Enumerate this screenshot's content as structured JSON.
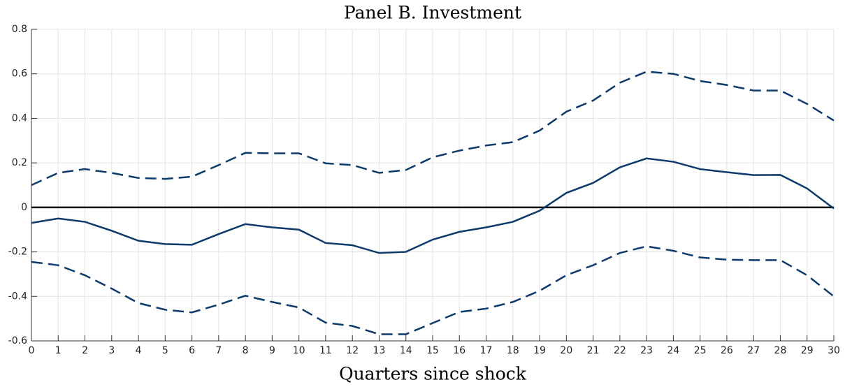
{
  "chart_data": {
    "type": "line",
    "title": "Panel B. Investment",
    "x_label": "Quarters since shock",
    "x": [
      0,
      1,
      2,
      3,
      4,
      5,
      6,
      7,
      8,
      9,
      10,
      11,
      12,
      13,
      14,
      15,
      16,
      17,
      18,
      19,
      20,
      21,
      22,
      23,
      24,
      25,
      26,
      27,
      28,
      29,
      30
    ],
    "series": [
      {
        "color": "#0b3a6b",
        "line_style": "solid",
        "values": [
          -0.07,
          -0.05,
          -0.065,
          -0.105,
          -0.15,
          -0.165,
          -0.168,
          -0.12,
          -0.075,
          -0.09,
          -0.1,
          -0.16,
          -0.17,
          -0.205,
          -0.2,
          -0.145,
          -0.11,
          -0.09,
          -0.065,
          -0.015,
          0.065,
          0.11,
          0.18,
          0.22,
          0.205,
          0.172,
          0.158,
          0.145,
          0.146,
          0.085,
          -0.005
        ]
      },
      {
        "color": "#0b3a6b",
        "line_style": "dashed",
        "values": [
          0.1,
          0.155,
          0.172,
          0.155,
          0.132,
          0.128,
          0.138,
          0.19,
          0.245,
          0.243,
          0.243,
          0.198,
          0.19,
          0.155,
          0.168,
          0.225,
          0.255,
          0.278,
          0.293,
          0.345,
          0.43,
          0.48,
          0.56,
          0.61,
          0.6,
          0.568,
          0.55,
          0.525,
          0.525,
          0.465,
          0.39
        ]
      },
      {
        "color": "#0b3a6b",
        "line_style": "dashed",
        "values": [
          -0.245,
          -0.26,
          -0.305,
          -0.365,
          -0.43,
          -0.46,
          -0.472,
          -0.437,
          -0.397,
          -0.425,
          -0.45,
          -0.518,
          -0.533,
          -0.57,
          -0.57,
          -0.52,
          -0.47,
          -0.455,
          -0.425,
          -0.375,
          -0.305,
          -0.26,
          -0.205,
          -0.175,
          -0.195,
          -0.225,
          -0.235,
          -0.237,
          -0.237,
          -0.305,
          -0.4
        ]
      }
    ],
    "xlim": [
      0,
      30
    ],
    "xticks": [
      0,
      1,
      2,
      3,
      4,
      5,
      6,
      7,
      8,
      9,
      10,
      11,
      12,
      13,
      14,
      15,
      16,
      17,
      18,
      19,
      20,
      21,
      22,
      23,
      24,
      25,
      26,
      27,
      28,
      29,
      30
    ],
    "ylim": [
      -0.6,
      0.8
    ],
    "yticks": [
      -0.6,
      -0.4,
      -0.2,
      0,
      0.2,
      0.4,
      0.6,
      0.8
    ],
    "grid": true,
    "hlines": [
      0
    ],
    "hline_color": "#000000"
  }
}
